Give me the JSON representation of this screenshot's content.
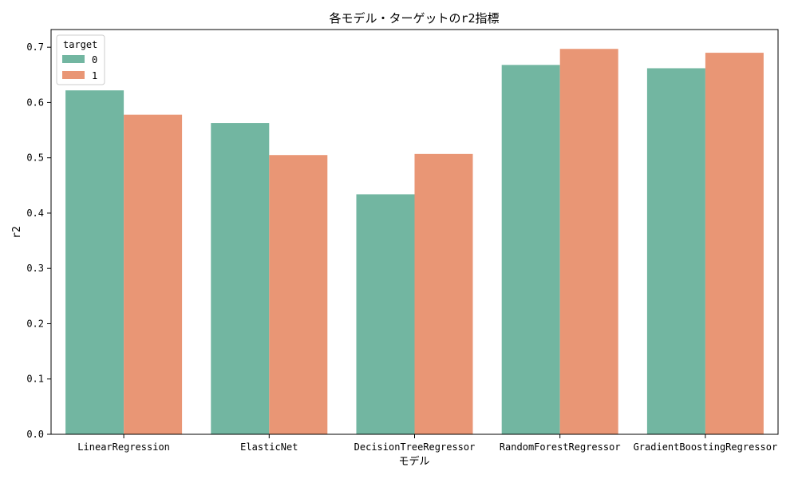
{
  "chart_data": {
    "type": "bar",
    "title": "各モデル・ターゲットのr2指標",
    "xlabel": "モデル",
    "ylabel": "r2",
    "categories": [
      "LinearRegression",
      "ElasticNet",
      "DecisionTreeRegressor",
      "RandomForestRegressor",
      "GradientBoostingRegressor"
    ],
    "series": [
      {
        "name": "0",
        "color": "#72b6a1",
        "values": [
          0.622,
          0.563,
          0.434,
          0.668,
          0.662
        ]
      },
      {
        "name": "1",
        "color": "#e99675",
        "values": [
          0.578,
          0.505,
          0.507,
          0.697,
          0.69
        ]
      }
    ],
    "ylim": [
      0,
      0.732
    ],
    "yticks": [
      0.0,
      0.1,
      0.2,
      0.3,
      0.4,
      0.5,
      0.6,
      0.7
    ],
    "ytick_labels": [
      "0.0",
      "0.1",
      "0.2",
      "0.3",
      "0.4",
      "0.5",
      "0.6",
      "0.7"
    ],
    "legend": {
      "title": "target",
      "position": "top-left"
    },
    "grid": false
  }
}
